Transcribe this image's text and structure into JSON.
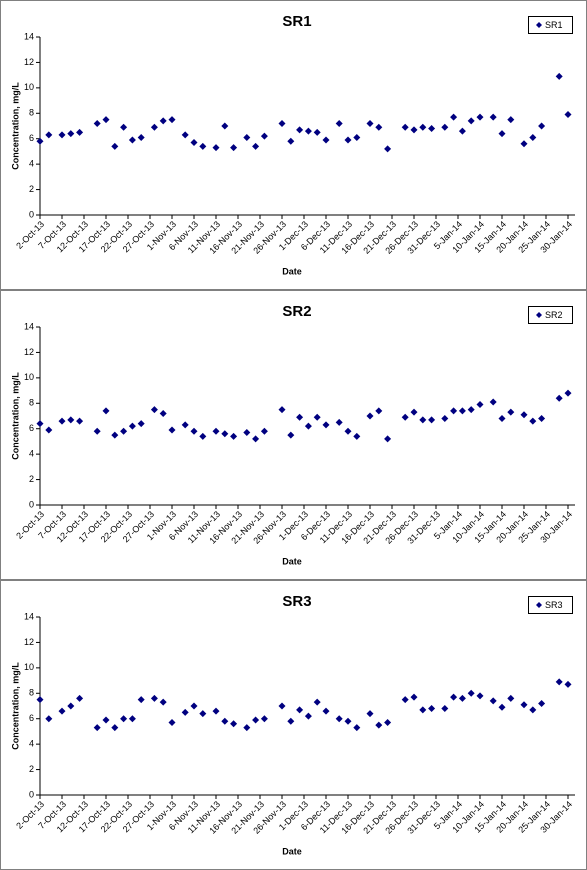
{
  "chart_data": [
    {
      "type": "scatter",
      "title": "SR1",
      "x_label": "Date",
      "y_label": "Concentration, mg/L",
      "x": [
        "2-Oct-13",
        "4-Oct-13",
        "7-Oct-13",
        "9-Oct-13",
        "11-Oct-13",
        "15-Oct-13",
        "17-Oct-13",
        "19-Oct-13",
        "21-Oct-13",
        "23-Oct-13",
        "25-Oct-13",
        "28-Oct-13",
        "30-Oct-13",
        "1-Nov-13",
        "4-Nov-13",
        "6-Nov-13",
        "8-Nov-13",
        "11-Nov-13",
        "13-Nov-13",
        "15-Nov-13",
        "18-Nov-13",
        "20-Nov-13",
        "22-Nov-13",
        "26-Nov-13",
        "28-Nov-13",
        "30-Nov-13",
        "2-Dec-13",
        "4-Dec-13",
        "6-Dec-13",
        "9-Dec-13",
        "11-Dec-13",
        "13-Dec-13",
        "16-Dec-13",
        "18-Dec-13",
        "20-Dec-13",
        "24-Dec-13",
        "26-Dec-13",
        "28-Dec-13",
        "30-Dec-13",
        "2-Jan-14",
        "4-Jan-14",
        "6-Jan-14",
        "8-Jan-14",
        "10-Jan-14",
        "13-Jan-14",
        "15-Jan-14",
        "17-Jan-14",
        "20-Jan-14",
        "22-Jan-14",
        "24-Jan-14",
        "28-Jan-14",
        "30-Jan-14"
      ],
      "series": [
        {
          "name": "SR1",
          "color": "#000080",
          "values": [
            5.8,
            6.3,
            6.3,
            6.4,
            6.5,
            7.2,
            7.5,
            5.4,
            6.9,
            5.9,
            6.1,
            6.9,
            7.4,
            7.5,
            6.3,
            5.7,
            5.4,
            5.3,
            7.0,
            5.3,
            6.1,
            5.4,
            6.2,
            7.2,
            5.8,
            6.7,
            6.6,
            6.5,
            5.9,
            7.2,
            5.9,
            6.1,
            7.2,
            6.9,
            5.2,
            6.9,
            6.7,
            6.9,
            6.8,
            6.9,
            7.7,
            6.6,
            7.4,
            7.7,
            7.7,
            6.4,
            7.5,
            5.6,
            6.1,
            7.0,
            10.9,
            7.9
          ]
        }
      ],
      "xlim": [
        "2-Oct-13",
        "30-Jan-14"
      ],
      "xticks": [
        "2-Oct-13",
        "7-Oct-13",
        "12-Oct-13",
        "17-Oct-13",
        "22-Oct-13",
        "27-Oct-13",
        "1-Nov-13",
        "6-Nov-13",
        "11-Nov-13",
        "16-Nov-13",
        "21-Nov-13",
        "26-Nov-13",
        "1-Dec-13",
        "6-Dec-13",
        "11-Dec-13",
        "16-Dec-13",
        "21-Dec-13",
        "26-Dec-13",
        "31-Dec-13",
        "5-Jan-14",
        "10-Jan-14",
        "15-Jan-14",
        "20-Jan-14",
        "25-Jan-14",
        "30-Jan-14"
      ],
      "ylim": [
        0,
        14
      ],
      "yticks": [
        0,
        2,
        4,
        6,
        8,
        10,
        12,
        14
      ],
      "legend": "upper right"
    },
    {
      "type": "scatter",
      "title": "SR2",
      "x_label": "Date",
      "y_label": "Concentration, mg/L",
      "x": [
        "2-Oct-13",
        "4-Oct-13",
        "7-Oct-13",
        "9-Oct-13",
        "11-Oct-13",
        "15-Oct-13",
        "17-Oct-13",
        "19-Oct-13",
        "21-Oct-13",
        "23-Oct-13",
        "25-Oct-13",
        "28-Oct-13",
        "30-Oct-13",
        "1-Nov-13",
        "4-Nov-13",
        "6-Nov-13",
        "8-Nov-13",
        "11-Nov-13",
        "13-Nov-13",
        "15-Nov-13",
        "18-Nov-13",
        "20-Nov-13",
        "22-Nov-13",
        "26-Nov-13",
        "28-Nov-13",
        "30-Nov-13",
        "2-Dec-13",
        "4-Dec-13",
        "6-Dec-13",
        "9-Dec-13",
        "11-Dec-13",
        "13-Dec-13",
        "16-Dec-13",
        "18-Dec-13",
        "20-Dec-13",
        "24-Dec-13",
        "26-Dec-13",
        "28-Dec-13",
        "30-Dec-13",
        "2-Jan-14",
        "4-Jan-14",
        "6-Jan-14",
        "8-Jan-14",
        "10-Jan-14",
        "13-Jan-14",
        "15-Jan-14",
        "17-Jan-14",
        "20-Jan-14",
        "22-Jan-14",
        "24-Jan-14",
        "28-Jan-14",
        "30-Jan-14"
      ],
      "series": [
        {
          "name": "SR2",
          "color": "#000080",
          "values": [
            6.4,
            5.9,
            6.6,
            6.7,
            6.6,
            5.8,
            7.4,
            5.5,
            5.8,
            6.2,
            6.4,
            7.5,
            7.2,
            5.9,
            6.3,
            5.8,
            5.4,
            5.8,
            5.6,
            5.4,
            5.7,
            5.2,
            5.8,
            7.5,
            5.5,
            6.9,
            6.2,
            6.9,
            6.3,
            6.5,
            5.8,
            5.4,
            7.0,
            7.4,
            5.2,
            6.9,
            7.3,
            6.7,
            6.7,
            6.8,
            7.4,
            7.4,
            7.5,
            7.9,
            8.1,
            6.8,
            7.3,
            7.1,
            6.6,
            6.8,
            8.4,
            8.8
          ]
        }
      ],
      "xlim": [
        "2-Oct-13",
        "30-Jan-14"
      ],
      "xticks": [
        "2-Oct-13",
        "7-Oct-13",
        "12-Oct-13",
        "17-Oct-13",
        "22-Oct-13",
        "27-Oct-13",
        "1-Nov-13",
        "6-Nov-13",
        "11-Nov-13",
        "16-Nov-13",
        "21-Nov-13",
        "26-Nov-13",
        "1-Dec-13",
        "6-Dec-13",
        "11-Dec-13",
        "16-Dec-13",
        "21-Dec-13",
        "26-Dec-13",
        "31-Dec-13",
        "5-Jan-14",
        "10-Jan-14",
        "15-Jan-14",
        "20-Jan-14",
        "25-Jan-14",
        "30-Jan-14"
      ],
      "ylim": [
        0,
        14
      ],
      "yticks": [
        0,
        2,
        4,
        6,
        8,
        10,
        12,
        14
      ],
      "legend": "upper right"
    },
    {
      "type": "scatter",
      "title": "SR3",
      "x_label": "Date",
      "y_label": "Concentration, mg/L",
      "x": [
        "2-Oct-13",
        "4-Oct-13",
        "7-Oct-13",
        "9-Oct-13",
        "11-Oct-13",
        "15-Oct-13",
        "17-Oct-13",
        "19-Oct-13",
        "21-Oct-13",
        "23-Oct-13",
        "25-Oct-13",
        "28-Oct-13",
        "30-Oct-13",
        "1-Nov-13",
        "4-Nov-13",
        "6-Nov-13",
        "8-Nov-13",
        "11-Nov-13",
        "13-Nov-13",
        "15-Nov-13",
        "18-Nov-13",
        "20-Nov-13",
        "22-Nov-13",
        "26-Nov-13",
        "28-Nov-13",
        "30-Nov-13",
        "2-Dec-13",
        "4-Dec-13",
        "6-Dec-13",
        "9-Dec-13",
        "11-Dec-13",
        "13-Dec-13",
        "16-Dec-13",
        "18-Dec-13",
        "20-Dec-13",
        "24-Dec-13",
        "26-Dec-13",
        "28-Dec-13",
        "30-Dec-13",
        "2-Jan-14",
        "4-Jan-14",
        "6-Jan-14",
        "8-Jan-14",
        "10-Jan-14",
        "13-Jan-14",
        "15-Jan-14",
        "17-Jan-14",
        "20-Jan-14",
        "22-Jan-14",
        "24-Jan-14",
        "28-Jan-14",
        "30-Jan-14"
      ],
      "series": [
        {
          "name": "SR3",
          "color": "#000080",
          "values": [
            7.5,
            6.0,
            6.6,
            7.0,
            7.6,
            5.3,
            5.9,
            5.3,
            6.0,
            6.0,
            7.5,
            7.6,
            7.3,
            5.7,
            6.5,
            7.0,
            6.4,
            6.6,
            5.8,
            5.6,
            5.3,
            5.9,
            6.0,
            7.0,
            5.8,
            6.7,
            6.2,
            7.3,
            6.6,
            6.0,
            5.8,
            5.3,
            6.4,
            5.5,
            5.7,
            7.5,
            7.7,
            6.7,
            6.8,
            6.8,
            7.7,
            7.6,
            8.0,
            7.8,
            7.4,
            6.9,
            7.6,
            7.1,
            6.7,
            7.2,
            8.9,
            8.7
          ]
        }
      ],
      "xlim": [
        "2-Oct-13",
        "30-Jan-14"
      ],
      "xticks": [
        "2-Oct-13",
        "7-Oct-13",
        "12-Oct-13",
        "17-Oct-13",
        "22-Oct-13",
        "27-Oct-13",
        "1-Nov-13",
        "6-Nov-13",
        "11-Nov-13",
        "16-Nov-13",
        "21-Nov-13",
        "26-Nov-13",
        "1-Dec-13",
        "6-Dec-13",
        "11-Dec-13",
        "16-Dec-13",
        "21-Dec-13",
        "26-Dec-13",
        "31-Dec-13",
        "5-Jan-14",
        "10-Jan-14",
        "15-Jan-14",
        "20-Jan-14",
        "25-Jan-14",
        "30-Jan-14"
      ],
      "ylim": [
        0,
        14
      ],
      "yticks": [
        0,
        2,
        4,
        6,
        8,
        10,
        12,
        14
      ],
      "legend": "upper right"
    }
  ]
}
